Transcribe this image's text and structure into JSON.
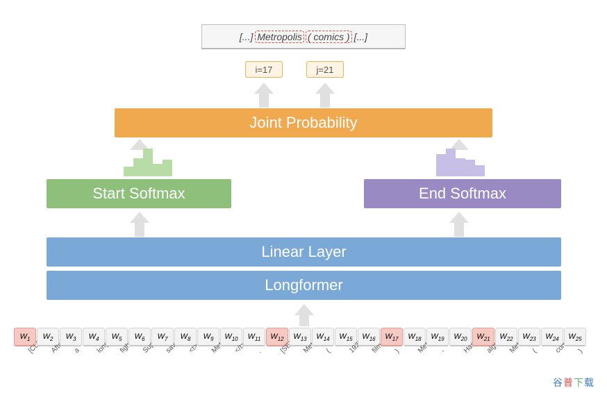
{
  "output": {
    "prefix": "[...] ",
    "m1": "Metropolis",
    "m2": "( comics )",
    "suffix": " [...]"
  },
  "indices": {
    "i": "i=17",
    "j": "j=21"
  },
  "layers": {
    "joint": "Joint Probability",
    "start": "Start Softmax",
    "end": "End Softmax",
    "linear": "Linear Layer",
    "longformer": "Longformer"
  },
  "mini_bars": {
    "start": {
      "heights": [
        14,
        26,
        40,
        18,
        24
      ],
      "color": "#b7dca6"
    },
    "end": {
      "heights": [
        32,
        40,
        26,
        24,
        16
      ],
      "color": "#c8bfe6"
    }
  },
  "tokens": [
    {
      "w": "W",
      "i": "1",
      "label": "[CLS]",
      "hl": true
    },
    {
      "w": "W",
      "i": "2",
      "label": "After",
      "hl": false
    },
    {
      "w": "W",
      "i": "3",
      "label": "a",
      "hl": false
    },
    {
      "w": "W",
      "i": "4",
      "label": "long",
      "hl": false
    },
    {
      "w": "W",
      "i": "5",
      "label": "fight",
      "hl": false
    },
    {
      "w": "W",
      "i": "6",
      "label": "Superman",
      "hl": false
    },
    {
      "w": "W",
      "i": "7",
      "label": "saved",
      "hl": false
    },
    {
      "w": "W",
      "i": "8",
      "label": "<t>",
      "hl": false
    },
    {
      "w": "W",
      "i": "9",
      "label": "Metropolis",
      "hl": false
    },
    {
      "w": "W",
      "i": "10",
      "label": "</t>",
      "hl": false
    },
    {
      "w": "W",
      "i": "11",
      "label": ".",
      "hl": false
    },
    {
      "w": "W",
      "i": "12",
      "label": "[SEP]",
      "hl": true
    },
    {
      "w": "W",
      "i": "13",
      "label": "Metropolis",
      "hl": false
    },
    {
      "w": "W",
      "i": "14",
      "label": "(",
      "hl": false
    },
    {
      "w": "W",
      "i": "15",
      "label": "1927",
      "hl": false
    },
    {
      "w": "W",
      "i": "16",
      "label": "film",
      "hl": false
    },
    {
      "w": "W",
      "i": "17",
      "label": ")",
      "hl": true
    },
    {
      "w": "W",
      "i": "18",
      "label": "Metropolis",
      "hl": false
    },
    {
      "w": "W",
      "i": "19",
      "label": "-",
      "hl": false
    },
    {
      "w": "W",
      "i": "20",
      "label": "Hasting",
      "hl": false
    },
    {
      "w": "W",
      "i": "21",
      "label": "algorithm",
      "hl": true
    },
    {
      "w": "W",
      "i": "22",
      "label": "Metropolis",
      "hl": false
    },
    {
      "w": "W",
      "i": "23",
      "label": "(",
      "hl": false
    },
    {
      "w": "W",
      "i": "24",
      "label": "comics",
      "hl": false
    },
    {
      "w": "W",
      "i": "25",
      "label": ")",
      "hl": false
    }
  ],
  "colors": {
    "joint_bg": "#f0a94f",
    "start_bg": "#8ebf7b",
    "end_bg": "#9a8ac4",
    "linear_bg": "#7aa9d8",
    "arrow": "#e0e0e0",
    "token_bg": "#f3f3f3",
    "token_hl_bg": "#f6c9c3",
    "dashed_border": "#d94a3a"
  },
  "watermark": "谷普下载"
}
